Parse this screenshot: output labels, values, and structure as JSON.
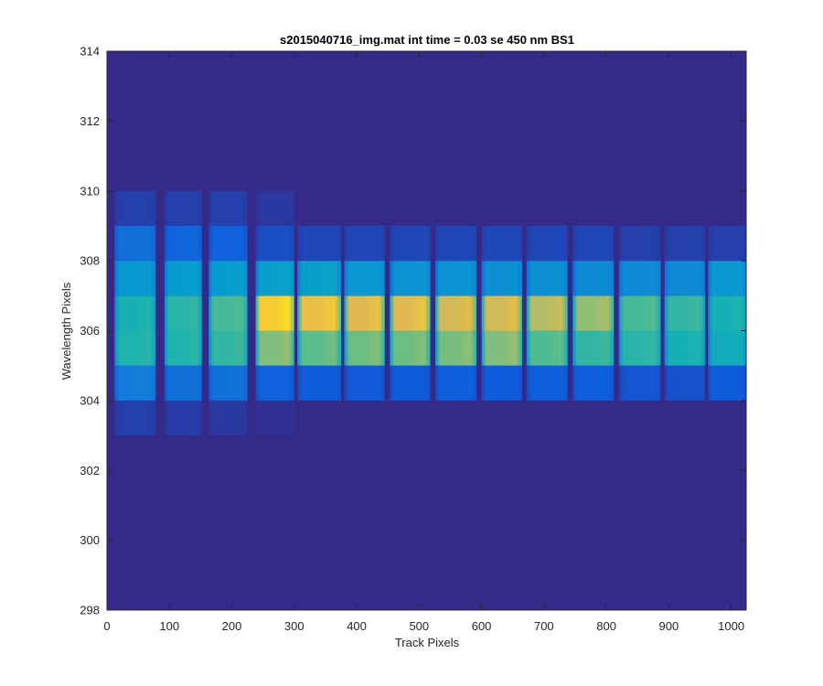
{
  "chart_data": {
    "type": "heatmap",
    "title": "s2015040716_img.mat int time = 0.03 se  450 nm BS1",
    "xlabel": "Track Pixels",
    "ylabel": "Wavelength Pixels",
    "xlim": [
      0,
      1024
    ],
    "ylim": [
      298,
      314
    ],
    "xticks": [
      0,
      100,
      200,
      300,
      400,
      500,
      600,
      700,
      800,
      900,
      1000
    ],
    "yticks": [
      298,
      300,
      302,
      304,
      306,
      308,
      310,
      312,
      314
    ],
    "colormap": "parula",
    "background_level": 0.0,
    "segments": [
      {
        "x": [
          12,
          78
        ]
      },
      {
        "x": [
          92,
          152
        ]
      },
      {
        "x": [
          163,
          225
        ]
      },
      {
        "x": [
          238,
          300
        ]
      },
      {
        "x": [
          305,
          375
        ]
      },
      {
        "x": [
          380,
          445
        ]
      },
      {
        "x": [
          453,
          518
        ]
      },
      {
        "x": [
          526,
          592
        ]
      },
      {
        "x": [
          600,
          665
        ]
      },
      {
        "x": [
          672,
          738
        ]
      },
      {
        "x": [
          746,
          812
        ]
      },
      {
        "x": [
          820,
          887
        ]
      },
      {
        "x": [
          893,
          958
        ]
      },
      {
        "x": [
          963,
          1024
        ]
      }
    ],
    "rows": [
      {
        "y": [
          303,
          304
        ],
        "levels": [
          0.06,
          0.05,
          0.04,
          0.02,
          0,
          0,
          0,
          0,
          0,
          0,
          0,
          0,
          0,
          0
        ]
      },
      {
        "y": [
          304,
          305
        ],
        "levels": [
          0.28,
          0.22,
          0.23,
          0.16,
          0.14,
          0.13,
          0.14,
          0.15,
          0.14,
          0.15,
          0.15,
          0.12,
          0.11,
          0.14
        ]
      },
      {
        "y": [
          305,
          306
        ],
        "levels": [
          0.58,
          0.58,
          0.62,
          0.74,
          0.7,
          0.72,
          0.72,
          0.73,
          0.74,
          0.68,
          0.62,
          0.6,
          0.56,
          0.52
        ]
      },
      {
        "y": [
          306,
          307
        ],
        "levels": [
          0.56,
          0.6,
          0.66,
          0.92,
          0.88,
          0.86,
          0.86,
          0.84,
          0.84,
          0.8,
          0.76,
          0.66,
          0.62,
          0.56
        ]
      },
      {
        "y": [
          307,
          308
        ],
        "levels": [
          0.4,
          0.42,
          0.42,
          0.44,
          0.44,
          0.4,
          0.38,
          0.38,
          0.36,
          0.36,
          0.34,
          0.34,
          0.34,
          0.4
        ]
      },
      {
        "y": [
          308,
          309
        ],
        "levels": [
          0.22,
          0.18,
          0.16,
          0.1,
          0.08,
          0.08,
          0.08,
          0.08,
          0.08,
          0.08,
          0.08,
          0.06,
          0.06,
          0.06
        ]
      },
      {
        "y": [
          309,
          310
        ],
        "levels": [
          0.06,
          0.06,
          0.06,
          0.04,
          0,
          0,
          0,
          0,
          0,
          0,
          0,
          0,
          0,
          0
        ]
      }
    ]
  }
}
